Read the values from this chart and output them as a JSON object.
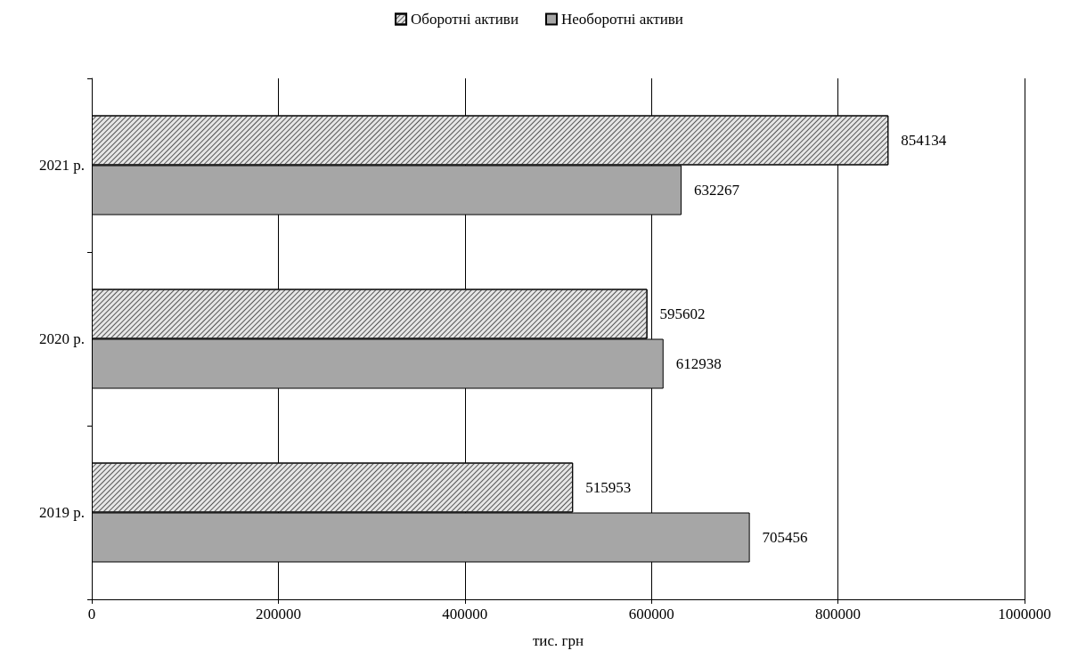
{
  "chart_data": {
    "type": "bar",
    "orientation": "horizontal",
    "xlabel": "тис. грн",
    "categories": [
      "2021 р.",
      "2020 р.",
      "2019 р."
    ],
    "series": [
      {
        "name": "Оборотні активи",
        "color": "#e6e6e6",
        "values": [
          854134,
          595602,
          515953
        ]
      },
      {
        "name": "Необоротні активи",
        "color": "#a6a6a6",
        "values": [
          632267,
          612938,
          705456
        ]
      }
    ],
    "xlim": [
      0,
      1000000
    ],
    "xticks": [
      0,
      200000,
      400000,
      600000,
      800000,
      1000000
    ],
    "grid": "x",
    "legend": "top",
    "data_labels": true
  }
}
